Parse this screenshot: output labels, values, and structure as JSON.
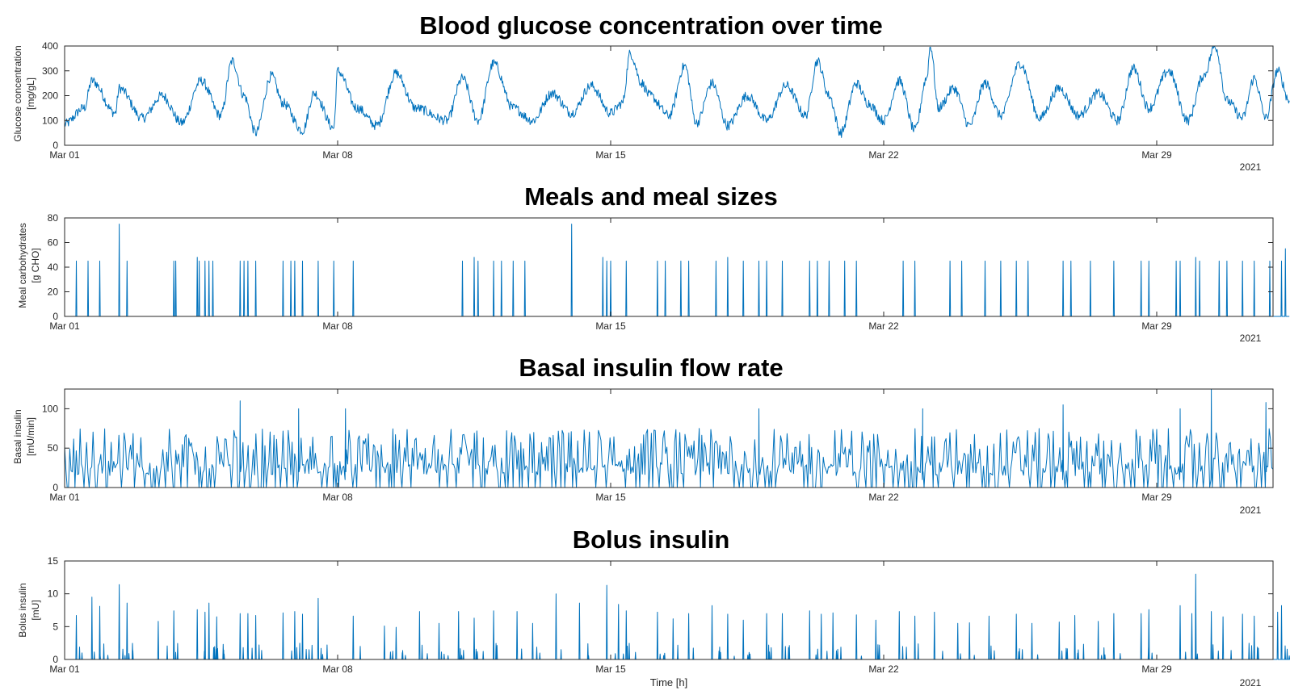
{
  "chart_data": [
    {
      "type": "line",
      "title": "Blood glucose concentration over time",
      "ylabel_line1": "Glucose concentration",
      "ylabel_line2": "[mg/gL]",
      "xlabel": "",
      "year_label": "2021",
      "ylim": [
        0,
        400
      ],
      "yticks": [
        "0",
        "100",
        "200",
        "300",
        "400"
      ],
      "xlim_days": [
        0,
        31.4
      ],
      "xticks": [
        "Mar 01",
        "Mar 08",
        "Mar 15",
        "Mar 22",
        "Mar 29"
      ],
      "color": "#0072BD",
      "key_points": [
        [
          0,
          85
        ],
        [
          0.5,
          150
        ],
        [
          0.7,
          260
        ],
        [
          1.3,
          130
        ],
        [
          1.4,
          230
        ],
        [
          2.0,
          110
        ],
        [
          2.5,
          200
        ],
        [
          3.0,
          90
        ],
        [
          3.5,
          260
        ],
        [
          4.0,
          120
        ],
        [
          4.3,
          340
        ],
        [
          4.6,
          200
        ],
        [
          4.9,
          50
        ],
        [
          5.3,
          280
        ],
        [
          5.6,
          170
        ],
        [
          6.1,
          60
        ],
        [
          6.4,
          210
        ],
        [
          6.9,
          70
        ],
        [
          7.0,
          300
        ],
        [
          7.5,
          150
        ],
        [
          8.0,
          80
        ],
        [
          8.5,
          290
        ],
        [
          9.0,
          150
        ],
        [
          9.8,
          100
        ],
        [
          10.2,
          270
        ],
        [
          10.6,
          100
        ],
        [
          11.0,
          330
        ],
        [
          11.5,
          150
        ],
        [
          12.0,
          100
        ],
        [
          12.5,
          210
        ],
        [
          13.0,
          130
        ],
        [
          13.5,
          240
        ],
        [
          14.0,
          130
        ],
        [
          14.3,
          170
        ],
        [
          14.5,
          370
        ],
        [
          14.8,
          250
        ],
        [
          15.0,
          200
        ],
        [
          15.5,
          120
        ],
        [
          15.9,
          320
        ],
        [
          16.2,
          90
        ],
        [
          16.6,
          250
        ],
        [
          17.0,
          80
        ],
        [
          17.5,
          200
        ],
        [
          18.0,
          100
        ],
        [
          18.5,
          240
        ],
        [
          19.0,
          120
        ],
        [
          19.3,
          340
        ],
        [
          19.6,
          200
        ],
        [
          19.9,
          50
        ],
        [
          20.3,
          250
        ],
        [
          20.6,
          170
        ],
        [
          21.0,
          100
        ],
        [
          21.4,
          260
        ],
        [
          21.8,
          60
        ],
        [
          22.1,
          270
        ],
        [
          22.2,
          400
        ],
        [
          22.4,
          150
        ],
        [
          22.8,
          230
        ],
        [
          23.2,
          80
        ],
        [
          23.6,
          250
        ],
        [
          24.0,
          120
        ],
        [
          24.5,
          330
        ],
        [
          25.0,
          110
        ],
        [
          25.5,
          230
        ],
        [
          26.0,
          120
        ],
        [
          26.5,
          210
        ],
        [
          27.0,
          100
        ],
        [
          27.4,
          310
        ],
        [
          27.8,
          150
        ],
        [
          28.3,
          300
        ],
        [
          28.8,
          100
        ],
        [
          29.2,
          280
        ],
        [
          29.5,
          400
        ],
        [
          29.8,
          180
        ],
        [
          30.2,
          110
        ],
        [
          30.5,
          270
        ],
        [
          30.8,
          110
        ],
        [
          31.1,
          300
        ],
        [
          31.4,
          180
        ]
      ],
      "value_range_note_hidden": ""
    },
    {
      "type": "line",
      "title": "Meals and meal sizes",
      "ylabel_line1": "Meal carbohydrates",
      "ylabel_line2": "[g CHO]",
      "xlabel": "",
      "year_label": "2021",
      "ylim": [
        0,
        80
      ],
      "yticks": [
        "0",
        "20",
        "40",
        "60",
        "80"
      ],
      "xlim_days": [
        0,
        31.4
      ],
      "xticks": [
        "Mar 01",
        "Mar 08",
        "Mar 15",
        "Mar 22",
        "Mar 29"
      ],
      "color": "#0072BD",
      "peaks_days": [
        [
          0.3,
          45
        ],
        [
          0.6,
          45
        ],
        [
          0.9,
          45
        ],
        [
          1.4,
          75
        ],
        [
          1.6,
          45
        ],
        [
          2.8,
          45
        ],
        [
          2.85,
          45
        ],
        [
          3.4,
          48
        ],
        [
          3.45,
          45
        ],
        [
          3.6,
          45
        ],
        [
          3.7,
          45
        ],
        [
          3.8,
          45
        ],
        [
          4.5,
          45
        ],
        [
          4.6,
          45
        ],
        [
          4.7,
          45
        ],
        [
          4.9,
          45
        ],
        [
          5.6,
          45
        ],
        [
          5.8,
          45
        ],
        [
          5.9,
          45
        ],
        [
          6.1,
          45
        ],
        [
          6.5,
          45
        ],
        [
          6.9,
          45
        ],
        [
          7.4,
          45
        ],
        [
          10.2,
          45
        ],
        [
          10.5,
          48
        ],
        [
          10.6,
          45
        ],
        [
          11.0,
          45
        ],
        [
          11.2,
          45
        ],
        [
          11.5,
          45
        ],
        [
          11.8,
          45
        ],
        [
          13.0,
          75
        ],
        [
          13.8,
          48
        ],
        [
          13.9,
          45
        ],
        [
          14.0,
          45
        ],
        [
          14.4,
          45
        ],
        [
          15.2,
          45
        ],
        [
          15.4,
          45
        ],
        [
          15.8,
          45
        ],
        [
          16.0,
          45
        ],
        [
          16.7,
          45
        ],
        [
          17.0,
          48
        ],
        [
          17.4,
          45
        ],
        [
          17.8,
          45
        ],
        [
          18.0,
          45
        ],
        [
          18.4,
          45
        ],
        [
          19.1,
          45
        ],
        [
          19.3,
          45
        ],
        [
          19.6,
          45
        ],
        [
          20.0,
          45
        ],
        [
          20.3,
          45
        ],
        [
          21.5,
          45
        ],
        [
          21.8,
          45
        ],
        [
          22.7,
          45
        ],
        [
          23.0,
          45
        ],
        [
          23.6,
          45
        ],
        [
          24.0,
          45
        ],
        [
          24.4,
          45
        ],
        [
          24.7,
          45
        ],
        [
          25.6,
          45
        ],
        [
          25.8,
          45
        ],
        [
          26.3,
          45
        ],
        [
          26.9,
          45
        ],
        [
          27.6,
          45
        ],
        [
          27.8,
          45
        ],
        [
          28.5,
          45
        ],
        [
          28.6,
          45
        ],
        [
          29.0,
          48
        ],
        [
          29.1,
          45
        ],
        [
          29.6,
          45
        ],
        [
          29.8,
          45
        ],
        [
          30.2,
          45
        ],
        [
          30.5,
          45
        ],
        [
          30.9,
          45
        ],
        [
          31.2,
          45
        ],
        [
          31.3,
          55
        ]
      ]
    },
    {
      "type": "line",
      "title": "Basal insulin flow rate",
      "ylabel_line1": "Basal insulin",
      "ylabel_line2": "[mU/min]",
      "xlabel": "",
      "year_label": "2021",
      "ylim": [
        0,
        125
      ],
      "yticks": [
        "0",
        "50",
        "100"
      ],
      "xlim_days": [
        0,
        31.4
      ],
      "xticks": [
        "Mar 01",
        "Mar 08",
        "Mar 15",
        "Mar 22",
        "Mar 29"
      ],
      "color": "#0072BD",
      "typical_baseline": 25,
      "typical_peak": 75,
      "notable_peaks": [
        [
          4.5,
          110
        ],
        [
          6.0,
          100
        ],
        [
          7.2,
          100
        ],
        [
          17.8,
          100
        ],
        [
          22.0,
          100
        ],
        [
          25.6,
          105
        ],
        [
          28.6,
          100
        ],
        [
          29.4,
          125
        ],
        [
          30.8,
          108
        ]
      ]
    },
    {
      "type": "line",
      "title": "Bolus insulin",
      "ylabel_line1": "Bolus insulin",
      "ylabel_line2": "[mU]",
      "xlabel": "Time [h]",
      "year_label": "2021",
      "ylim": [
        0,
        15
      ],
      "yticks": [
        "0",
        "5",
        "10",
        "15"
      ],
      "xlim_days": [
        0,
        31.4
      ],
      "xticks": [
        "Mar 01",
        "Mar 08",
        "Mar 15",
        "Mar 22",
        "Mar 29"
      ],
      "color": "#0072BD",
      "peaks_days": [
        [
          0.3,
          6.7
        ],
        [
          0.7,
          9.5
        ],
        [
          0.9,
          8.1
        ],
        [
          1.4,
          11.4
        ],
        [
          1.6,
          8.6
        ],
        [
          2.4,
          5.8
        ],
        [
          2.8,
          7.4
        ],
        [
          3.4,
          7.6
        ],
        [
          3.6,
          7.2
        ],
        [
          3.7,
          8.6
        ],
        [
          3.9,
          6.5
        ],
        [
          4.5,
          7.0
        ],
        [
          4.7,
          7.0
        ],
        [
          4.9,
          6.7
        ],
        [
          5.6,
          7.1
        ],
        [
          5.9,
          7.3
        ],
        [
          6.1,
          6.9
        ],
        [
          6.5,
          9.3
        ],
        [
          7.4,
          6.6
        ],
        [
          8.2,
          5.1
        ],
        [
          8.5,
          4.9
        ],
        [
          9.1,
          7.3
        ],
        [
          9.6,
          5.5
        ],
        [
          10.1,
          7.3
        ],
        [
          10.5,
          6.3
        ],
        [
          11.0,
          7.4
        ],
        [
          11.6,
          7.3
        ],
        [
          12.0,
          5.5
        ],
        [
          12.6,
          10.0
        ],
        [
          13.2,
          8.6
        ],
        [
          13.9,
          11.3
        ],
        [
          14.2,
          8.4
        ],
        [
          14.4,
          7.4
        ],
        [
          15.2,
          7.2
        ],
        [
          15.6,
          6.2
        ],
        [
          16.0,
          7.0
        ],
        [
          16.6,
          8.2
        ],
        [
          17.0,
          6.9
        ],
        [
          17.4,
          6.0
        ],
        [
          18.0,
          7.0
        ],
        [
          18.4,
          7.0
        ],
        [
          19.1,
          7.4
        ],
        [
          19.4,
          6.9
        ],
        [
          19.7,
          7.1
        ],
        [
          20.3,
          6.8
        ],
        [
          20.8,
          6.0
        ],
        [
          21.4,
          7.3
        ],
        [
          21.8,
          6.6
        ],
        [
          22.3,
          7.2
        ],
        [
          22.9,
          5.5
        ],
        [
          23.2,
          5.6
        ],
        [
          23.7,
          6.6
        ],
        [
          24.4,
          6.9
        ],
        [
          24.8,
          5.5
        ],
        [
          25.5,
          5.7
        ],
        [
          25.9,
          6.7
        ],
        [
          26.5,
          5.8
        ],
        [
          26.9,
          7.0
        ],
        [
          27.6,
          7.0
        ],
        [
          27.8,
          7.6
        ],
        [
          28.6,
          8.2
        ],
        [
          28.9,
          7.0
        ],
        [
          29.0,
          13.0
        ],
        [
          29.4,
          7.3
        ],
        [
          29.7,
          6.5
        ],
        [
          30.2,
          6.9
        ],
        [
          30.5,
          6.6
        ],
        [
          31.1,
          7.2
        ],
        [
          31.2,
          8.2
        ]
      ]
    }
  ]
}
